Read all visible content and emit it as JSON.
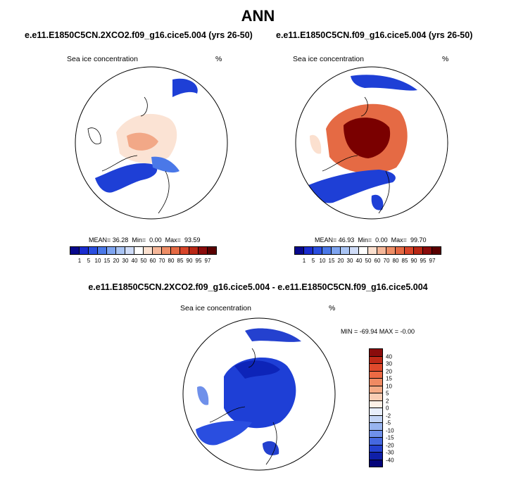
{
  "main_title": "ANN",
  "panels": [
    {
      "case": "e.e11.E1850C5CN.2XCO2.f09_g16.cice5.004 (yrs 26-50)",
      "variable": "Sea ice concentration",
      "units": "%",
      "mean_label": "MEAN=",
      "mean": "36.28",
      "min_label": "Min=",
      "min": "0.00",
      "max_label": "Max=",
      "max": "93.59"
    },
    {
      "case": "e.e11.E1850C5CN.f09_g16.cice5.004 (yrs 26-50)",
      "variable": "Sea ice concentration",
      "units": "%",
      "mean_label": "MEAN=",
      "mean": "46.93",
      "min_label": "Min=",
      "min": "0.00",
      "max_label": "Max=",
      "max": "99.70"
    }
  ],
  "abs_colorbar": {
    "labels": [
      "1",
      "5",
      "10",
      "15",
      "20",
      "30",
      "40",
      "50",
      "60",
      "70",
      "80",
      "85",
      "90",
      "95",
      "97"
    ],
    "colors": [
      "#08088c",
      "#1a2ccf",
      "#2a4ee0",
      "#4a78e8",
      "#7ea4f0",
      "#a9c4f4",
      "#cfdcf8",
      "#ffffff",
      "#fbe0cf",
      "#f5b799",
      "#ee8e66",
      "#e56a44",
      "#d8452a",
      "#b92816",
      "#8a0c0c",
      "#5a0000"
    ]
  },
  "diff_panel": {
    "title": "e.e11.E1850C5CN.2XCO2.f09_g16.cice5.004 - e.e11.E1850C5CN.f09_g16.cice5.004",
    "variable": "Sea ice concentration",
    "units": "%",
    "minmax": "MIN = -69.94 MAX =  -0.00"
  },
  "diff_colorbar": {
    "labels": [
      "40",
      "30",
      "20",
      "15",
      "10",
      "5",
      "2",
      "0",
      "-2",
      "-5",
      "-10",
      "-15",
      "-20",
      "-30",
      "-40"
    ],
    "colors": [
      "#8a0c0c",
      "#c02a18",
      "#e04a2c",
      "#ec6a44",
      "#f08a62",
      "#f5ab86",
      "#f9cdb4",
      "#fdf0e6",
      "#e8eefb",
      "#c3d4f6",
      "#98b4f0",
      "#6f90ea",
      "#4568e0",
      "#2441cf",
      "#0f1fa8",
      "#04047a"
    ]
  },
  "colors": {
    "land_outline": "#000000",
    "ice_blue": "#1e3fd6",
    "ice_red": "#8a0000"
  }
}
